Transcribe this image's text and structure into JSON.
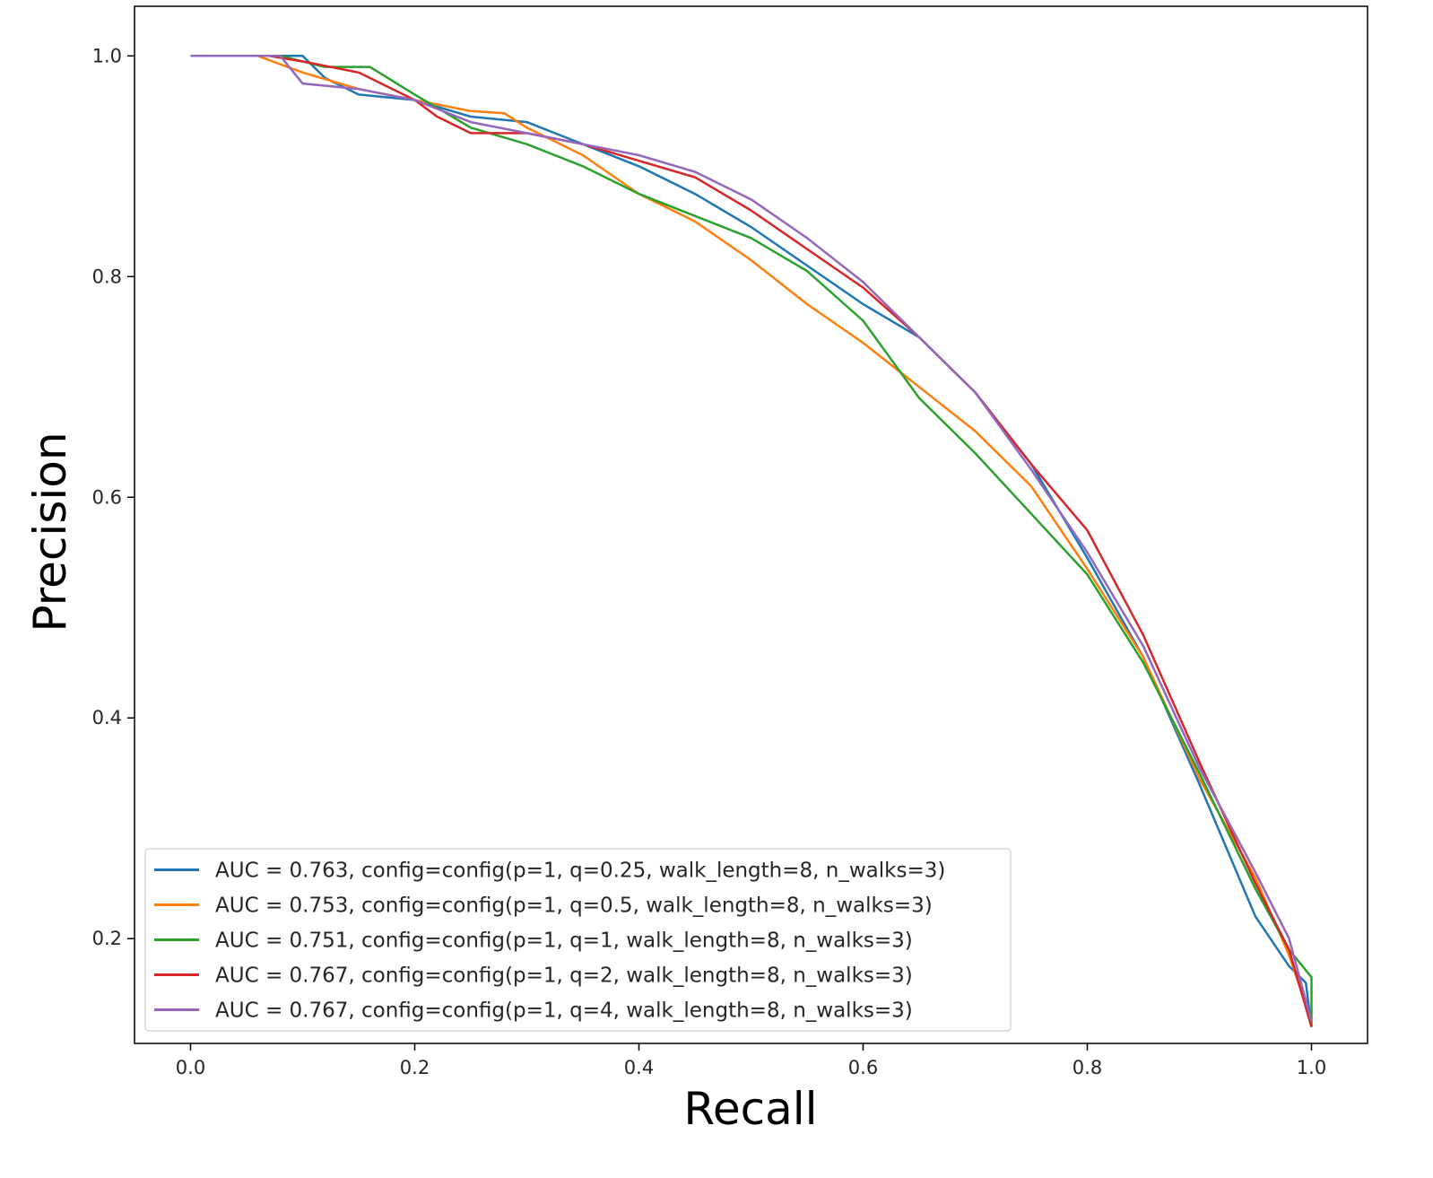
{
  "chart_data": {
    "type": "line",
    "title": "",
    "xlabel": "Recall",
    "ylabel": "Precision",
    "xlim": [
      -0.05,
      1.05
    ],
    "ylim": [
      0.105,
      1.045
    ],
    "xticks": [
      "0.0",
      "0.2",
      "0.4",
      "0.6",
      "0.8",
      "1.0"
    ],
    "yticks": [
      "0.2",
      "0.4",
      "0.6",
      "0.8",
      "1.0"
    ],
    "grid": false,
    "legend_position": "lower-left",
    "series": [
      {
        "name": "AUC = 0.763, config=config(p=1, q=0.25, walk_length=8, n_walks=3)",
        "color": "#1f77b4",
        "points": [
          [
            0.0,
            1.0
          ],
          [
            0.1,
            1.0
          ],
          [
            0.12,
            0.98
          ],
          [
            0.15,
            0.965
          ],
          [
            0.2,
            0.96
          ],
          [
            0.25,
            0.945
          ],
          [
            0.3,
            0.94
          ],
          [
            0.35,
            0.92
          ],
          [
            0.4,
            0.9
          ],
          [
            0.45,
            0.875
          ],
          [
            0.5,
            0.845
          ],
          [
            0.55,
            0.81
          ],
          [
            0.6,
            0.775
          ],
          [
            0.65,
            0.745
          ],
          [
            0.7,
            0.695
          ],
          [
            0.75,
            0.63
          ],
          [
            0.8,
            0.545
          ],
          [
            0.85,
            0.455
          ],
          [
            0.9,
            0.34
          ],
          [
            0.95,
            0.22
          ],
          [
            0.98,
            0.175
          ],
          [
            0.995,
            0.16
          ],
          [
            1.0,
            0.12
          ]
        ]
      },
      {
        "name": "AUC = 0.753, config=config(p=1, q=0.5, walk_length=8, n_walks=3)",
        "color": "#ff7f0e",
        "points": [
          [
            0.0,
            1.0
          ],
          [
            0.06,
            1.0
          ],
          [
            0.1,
            0.985
          ],
          [
            0.15,
            0.97
          ],
          [
            0.2,
            0.96
          ],
          [
            0.25,
            0.95
          ],
          [
            0.28,
            0.948
          ],
          [
            0.3,
            0.935
          ],
          [
            0.35,
            0.91
          ],
          [
            0.4,
            0.875
          ],
          [
            0.45,
            0.85
          ],
          [
            0.5,
            0.815
          ],
          [
            0.55,
            0.775
          ],
          [
            0.6,
            0.74
          ],
          [
            0.65,
            0.7
          ],
          [
            0.7,
            0.66
          ],
          [
            0.75,
            0.61
          ],
          [
            0.8,
            0.535
          ],
          [
            0.85,
            0.455
          ],
          [
            0.9,
            0.345
          ],
          [
            0.95,
            0.255
          ],
          [
            0.98,
            0.185
          ],
          [
            1.0,
            0.125
          ]
        ]
      },
      {
        "name": "AUC = 0.751, config=config(p=1, q=1, walk_length=8, n_walks=3)",
        "color": "#2ca02c",
        "points": [
          [
            0.0,
            1.0
          ],
          [
            0.08,
            1.0
          ],
          [
            0.12,
            0.99
          ],
          [
            0.16,
            0.99
          ],
          [
            0.2,
            0.965
          ],
          [
            0.25,
            0.935
          ],
          [
            0.3,
            0.92
          ],
          [
            0.35,
            0.9
          ],
          [
            0.4,
            0.875
          ],
          [
            0.45,
            0.855
          ],
          [
            0.5,
            0.835
          ],
          [
            0.55,
            0.805
          ],
          [
            0.6,
            0.76
          ],
          [
            0.65,
            0.69
          ],
          [
            0.7,
            0.64
          ],
          [
            0.75,
            0.585
          ],
          [
            0.8,
            0.53
          ],
          [
            0.85,
            0.45
          ],
          [
            0.9,
            0.35
          ],
          [
            0.95,
            0.245
          ],
          [
            0.98,
            0.19
          ],
          [
            1.0,
            0.165
          ],
          [
            1.0,
            0.12
          ]
        ]
      },
      {
        "name": "AUC = 0.767, config=config(p=1, q=2, walk_length=8, n_walks=3)",
        "color": "#d62728",
        "points": [
          [
            0.0,
            1.0
          ],
          [
            0.07,
            1.0
          ],
          [
            0.1,
            0.995
          ],
          [
            0.15,
            0.985
          ],
          [
            0.2,
            0.96
          ],
          [
            0.22,
            0.945
          ],
          [
            0.25,
            0.93
          ],
          [
            0.3,
            0.93
          ],
          [
            0.35,
            0.92
          ],
          [
            0.4,
            0.905
          ],
          [
            0.45,
            0.89
          ],
          [
            0.5,
            0.86
          ],
          [
            0.55,
            0.825
          ],
          [
            0.6,
            0.79
          ],
          [
            0.65,
            0.745
          ],
          [
            0.7,
            0.695
          ],
          [
            0.75,
            0.63
          ],
          [
            0.8,
            0.57
          ],
          [
            0.85,
            0.475
          ],
          [
            0.9,
            0.36
          ],
          [
            0.95,
            0.25
          ],
          [
            0.98,
            0.19
          ],
          [
            1.0,
            0.12
          ]
        ]
      },
      {
        "name": "AUC = 0.767, config=config(p=1, q=4, walk_length=8, n_walks=3)",
        "color": "#9467bd",
        "points": [
          [
            0.0,
            1.0
          ],
          [
            0.08,
            1.0
          ],
          [
            0.1,
            0.975
          ],
          [
            0.15,
            0.97
          ],
          [
            0.2,
            0.96
          ],
          [
            0.25,
            0.94
          ],
          [
            0.3,
            0.93
          ],
          [
            0.35,
            0.92
          ],
          [
            0.4,
            0.91
          ],
          [
            0.45,
            0.895
          ],
          [
            0.5,
            0.87
          ],
          [
            0.55,
            0.835
          ],
          [
            0.6,
            0.795
          ],
          [
            0.65,
            0.745
          ],
          [
            0.7,
            0.695
          ],
          [
            0.75,
            0.625
          ],
          [
            0.8,
            0.55
          ],
          [
            0.85,
            0.465
          ],
          [
            0.9,
            0.355
          ],
          [
            0.95,
            0.26
          ],
          [
            0.98,
            0.2
          ],
          [
            1.0,
            0.125
          ]
        ]
      }
    ]
  }
}
